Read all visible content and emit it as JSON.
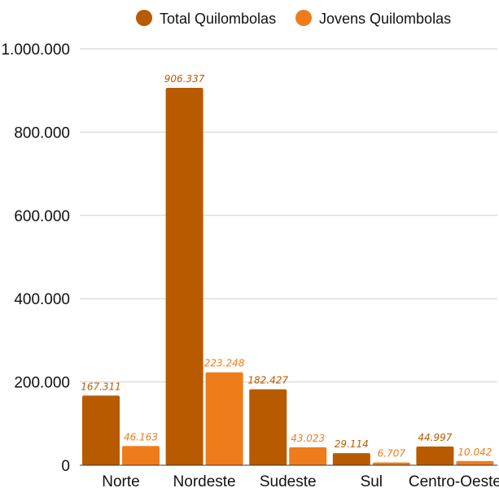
{
  "chart_data": {
    "type": "bar",
    "title": "",
    "xlabel": "",
    "ylabel": "",
    "categories": [
      "Norte",
      "Nordeste",
      "Sudeste",
      "Sul",
      "Centro-Oeste"
    ],
    "series": [
      {
        "name": "Total Quilombolas",
        "color": "#b85b00",
        "values": [
          167311,
          906337,
          182427,
          29114,
          44997
        ],
        "labels": [
          "167.311",
          "906.337",
          "182.427",
          "29.114",
          "44.997"
        ]
      },
      {
        "name": "Jovens Quilombolas",
        "color": "#ef7c1a",
        "values": [
          46163,
          223248,
          43023,
          6707,
          10042
        ],
        "labels": [
          "46.163",
          "223.248",
          "43.023",
          "6.707",
          "10.042"
        ]
      }
    ],
    "ylim": [
      0,
      1000000
    ],
    "yticks": [
      0,
      200000,
      400000,
      600000,
      800000,
      1000000
    ],
    "ytick_labels": [
      "0",
      "200.000",
      "400.000",
      "600.000",
      "800.000",
      "1.000.000"
    ],
    "grid": true,
    "legend_position": "top"
  }
}
